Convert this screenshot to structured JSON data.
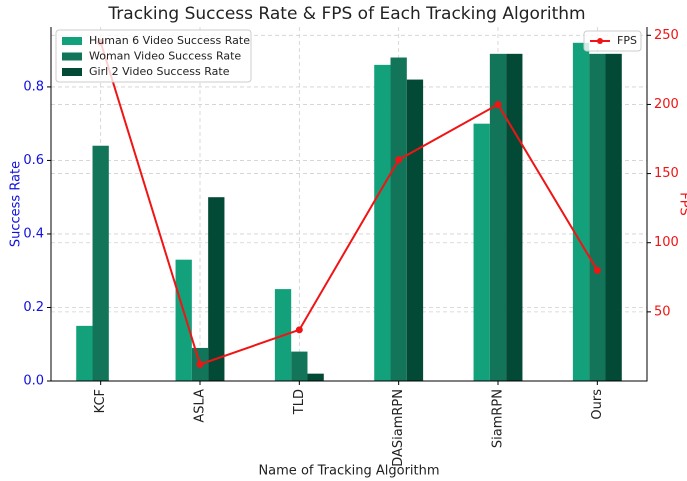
{
  "chart_data": {
    "type": "bar",
    "title": "Tracking Success Rate & FPS of Each Tracking Algorithm",
    "xlabel": "Name of Tracking Algorithm",
    "ylabel": "Success Rate",
    "y2label": "FPS",
    "categories": [
      "KCF",
      "ASLA",
      "TLD",
      "DASiamRPN",
      "SiamRPN",
      "Ours"
    ],
    "series": [
      {
        "name": "Human 6 Video Success Rate",
        "color": "#13a17c",
        "values": [
          0.15,
          0.33,
          0.25,
          0.86,
          0.7,
          0.92
        ]
      },
      {
        "name": "Woman Video Success Rate",
        "color": "#127559",
        "values": [
          0.64,
          0.09,
          0.08,
          0.88,
          0.89,
          0.89
        ]
      },
      {
        "name": "Girl 2 Video Success Rate",
        "color": "#024a35",
        "values": [
          0,
          0.5,
          0.02,
          0.82,
          0.89,
          0.89
        ]
      },
      {
        "name": "FPS",
        "type": "line",
        "axis": "y2",
        "color": "#f01414",
        "values": [
          245,
          12,
          37,
          160,
          200,
          80
        ]
      }
    ],
    "ylim": [
      0,
      0.963
    ],
    "yticks": [
      {
        "value": 0,
        "label": "0.0"
      },
      0.2,
      0.4,
      0.6,
      0.8
    ],
    "y2lim": [
      0,
      256
    ],
    "y2ticks": [
      50,
      100,
      150,
      200,
      250
    ],
    "ylabel_color": "#1010e0",
    "y2label_color": "#f01414",
    "grid": true,
    "legend": "upper left",
    "legend2": "upper right"
  }
}
